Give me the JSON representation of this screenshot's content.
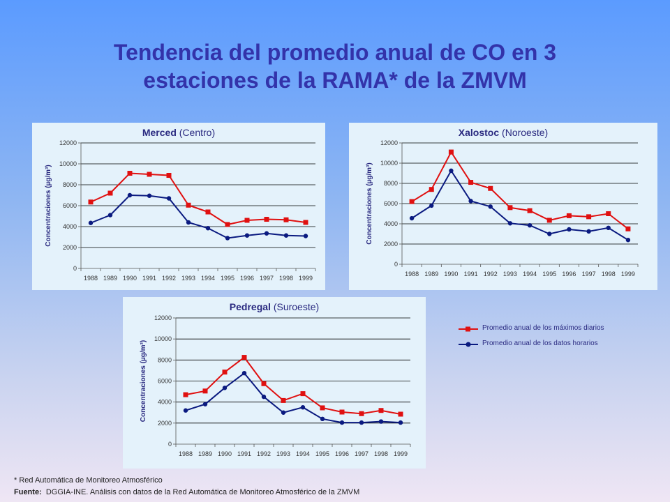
{
  "title": {
    "line1": "Tendencia del promedio anual de CO en 3",
    "line2": "estaciones de la RAMA* de la ZMVM"
  },
  "legend": {
    "max_label": "Promedio anual de los máximos diarios",
    "hourly_label": "Promedio anual de los datos horarios"
  },
  "colors": {
    "max": "#e01010",
    "hourly": "#0a1a80"
  },
  "footnote": "* Red Automática de Monitoreo Atmosférico",
  "source": {
    "label": "Fuente:",
    "text": "DGGIA-INE.  Análisis con datos de la Red Automática de Monitoreo Atmosférico de la ZMVM"
  },
  "chart_data": [
    {
      "type": "line",
      "title_bold": "Merced",
      "title_rest": " (Centro)",
      "ylabel": "Concentraciones  (µg/m³)",
      "ylim": [
        0,
        12000
      ],
      "yticks": [
        0,
        2000,
        4000,
        6000,
        8000,
        10000,
        12000
      ],
      "categories": [
        "1988",
        "1989",
        "1990",
        "1991",
        "1992",
        "1993",
        "1994",
        "1995",
        "1996",
        "1997",
        "1998",
        "1999"
      ],
      "series": [
        {
          "name": "Promedio anual de los máximos diarios",
          "marker": "square",
          "values": [
            6350,
            7200,
            9100,
            9000,
            8900,
            6050,
            5400,
            4200,
            4600,
            4700,
            4650,
            4400
          ]
        },
        {
          "name": "Promedio anual de los datos horarios",
          "marker": "circle",
          "values": [
            4350,
            5100,
            7000,
            6950,
            6700,
            4400,
            3850,
            2900,
            3150,
            3350,
            3150,
            3100
          ]
        }
      ]
    },
    {
      "type": "line",
      "title_bold": "Xalostoc",
      "title_rest": " (Noroeste)",
      "ylabel": "Concentraciones  (µg/m³)",
      "ylim": [
        0,
        12000
      ],
      "yticks": [
        0,
        2000,
        4000,
        6000,
        8000,
        10000,
        12000
      ],
      "categories": [
        "1988",
        "1989",
        "1990",
        "1991",
        "1992",
        "1993",
        "1994",
        "1995",
        "1996",
        "1997",
        "1998",
        "1999"
      ],
      "series": [
        {
          "name": "Promedio anual de los máximos diarios",
          "marker": "square",
          "values": [
            6200,
            7400,
            11100,
            8100,
            7500,
            5600,
            5300,
            4350,
            4800,
            4700,
            5000,
            3500
          ]
        },
        {
          "name": "Promedio anual de los datos horarios",
          "marker": "circle",
          "values": [
            4550,
            5800,
            9250,
            6250,
            5700,
            4050,
            3850,
            3000,
            3450,
            3250,
            3600,
            2400
          ]
        }
      ]
    },
    {
      "type": "line",
      "title_bold": "Pedregal",
      "title_rest": " (Suroeste)",
      "ylabel": "Concentraciones  (µg/m³)",
      "ylim": [
        0,
        12000
      ],
      "yticks": [
        0,
        2000,
        4000,
        6000,
        8000,
        10000,
        12000
      ],
      "categories": [
        "1988",
        "1989",
        "1990",
        "1991",
        "1992",
        "1993",
        "1994",
        "1995",
        "1996",
        "1997",
        "1998",
        "1999"
      ],
      "series": [
        {
          "name": "Promedio anual de los máximos diarios",
          "marker": "square",
          "values": [
            4700,
            5050,
            6850,
            8250,
            5750,
            4150,
            4800,
            3450,
            3050,
            2900,
            3200,
            2850
          ]
        },
        {
          "name": "Promedio anual de los datos horarios",
          "marker": "circle",
          "values": [
            3200,
            3800,
            5350,
            6750,
            4500,
            3000,
            3500,
            2400,
            2050,
            2050,
            2150,
            2050
          ]
        }
      ]
    }
  ]
}
